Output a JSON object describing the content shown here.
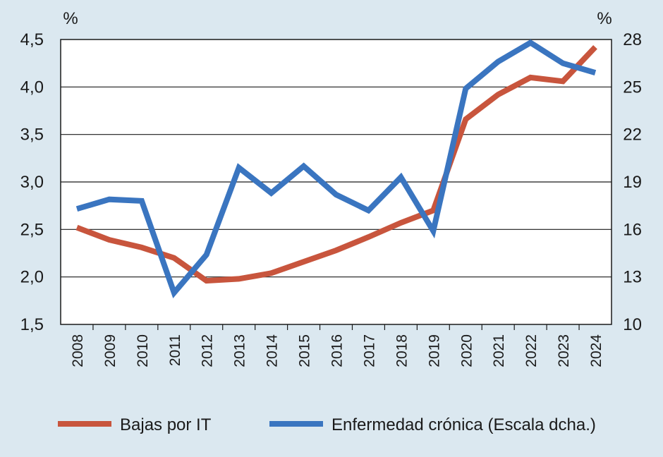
{
  "chart_data": {
    "type": "line",
    "title": "",
    "categories": [
      "2008",
      "2009",
      "2010",
      "2011",
      "2012",
      "2013",
      "2014",
      "2015",
      "2016",
      "2017",
      "2018",
      "2019",
      "2020",
      "2021",
      "2022",
      "2023",
      "2024"
    ],
    "series": [
      {
        "name": "Bajas por IT",
        "axis": "left",
        "color": "#c8553d",
        "values": [
          2.52,
          2.39,
          2.31,
          2.2,
          1.96,
          1.98,
          2.04,
          2.16,
          2.28,
          2.42,
          2.57,
          2.7,
          3.66,
          3.92,
          4.1,
          4.06,
          4.42
        ]
      },
      {
        "name": "Enfermedad crónica (Escala dcha.)",
        "axis": "right",
        "color": "#3a75c0",
        "values": [
          17.3,
          17.9,
          17.8,
          12.0,
          14.4,
          19.9,
          18.3,
          20.0,
          18.2,
          17.2,
          19.3,
          15.9,
          24.9,
          26.6,
          27.8,
          26.5,
          25.9
        ]
      }
    ],
    "y_left": {
      "unit": "%",
      "ylim": [
        1.5,
        4.5
      ],
      "ticks": [
        1.5,
        2.0,
        2.5,
        3.0,
        3.5,
        4.0,
        4.5
      ],
      "tick_labels": [
        "1,5",
        "2,0",
        "2,5",
        "3,0",
        "3,5",
        "4,0",
        "4,5"
      ]
    },
    "y_right": {
      "unit": "%",
      "ylim": [
        10,
        28
      ],
      "ticks": [
        10,
        13,
        16,
        19,
        22,
        25,
        28
      ],
      "tick_labels": [
        "10",
        "13",
        "16",
        "19",
        "22",
        "25",
        "28"
      ]
    },
    "grid": "horizontal",
    "legend": "bottom"
  }
}
